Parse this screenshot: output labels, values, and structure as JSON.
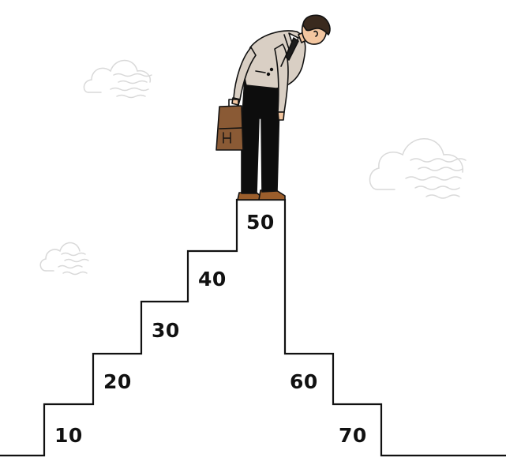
{
  "illustration": {
    "subject": "businessman-at-peak-of-staircase",
    "icons": [
      "cloud-icon",
      "briefcase-icon"
    ]
  },
  "steps": [
    {
      "label": "10"
    },
    {
      "label": "20"
    },
    {
      "label": "30"
    },
    {
      "label": "40"
    },
    {
      "label": "50"
    },
    {
      "label": "60"
    },
    {
      "label": "70"
    }
  ],
  "colors": {
    "line": "#111111",
    "cloud": "#d9d9d9",
    "suit_jacket": "#d9cfc4",
    "trousers": "#0d0d0d",
    "briefcase": "#8a5a35",
    "shoes": "#9b5e2c",
    "skin": "#f3c6a0",
    "hair": "#3a2a1e",
    "tie": "#1c1c1c"
  }
}
